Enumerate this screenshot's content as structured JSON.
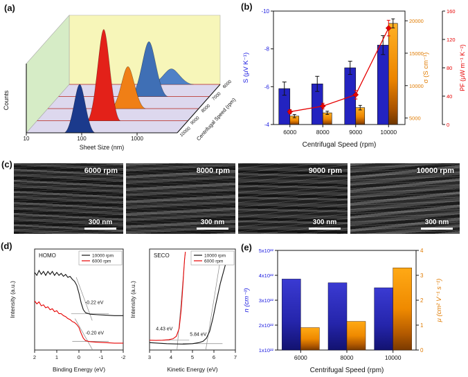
{
  "panels": {
    "a": {
      "label": "(a)"
    },
    "b": {
      "label": "(b)"
    },
    "c": {
      "label": "(c)",
      "images": [
        {
          "title": "6000 rpm",
          "scale": "300 nm"
        },
        {
          "title": "8000 rpm",
          "scale": "300 nm"
        },
        {
          "title": "9000 rpm",
          "scale": "300 nm"
        },
        {
          "title": "10000 rpm",
          "scale": "300 nm"
        }
      ]
    },
    "d": {
      "label": "(d)"
    },
    "e": {
      "label": "(e)"
    }
  },
  "chart_data": [
    {
      "id": "a",
      "type": "3d-distribution",
      "xlabel": "Sheet Size (nm)",
      "ylabel": "Counts",
      "zlabel": "Centrifugal Speed (rpm)",
      "x_ticks": [
        "10",
        "100",
        "1000"
      ],
      "x_log_range": [
        10,
        5000
      ],
      "series": [
        {
          "speed": "6000",
          "color": "#4f81c7",
          "peak_nm": 700,
          "height": 0.17,
          "width_dec": 0.2
        },
        {
          "speed": "7000",
          "color": "#3f6fb5",
          "peak_nm": 430,
          "height": 0.6,
          "width_dec": 0.17
        },
        {
          "speed": "8000",
          "color": "#f07f16",
          "peak_nm": 280,
          "height": 0.46,
          "width_dec": 0.16
        },
        {
          "speed": "9000",
          "color": "#e32119",
          "peak_nm": 160,
          "height": 1.0,
          "width_dec": 0.15
        },
        {
          "speed": "10000",
          "color": "#1b3a8c",
          "peak_nm": 92,
          "height": 0.53,
          "width_dec": 0.14
        }
      ]
    },
    {
      "id": "b",
      "type": "bar",
      "categories": [
        "6000",
        "8000",
        "9000",
        "10000"
      ],
      "xlabel": "Centrifugal Speed (rpm)",
      "series": [
        {
          "name": "S",
          "kind": "bar",
          "axis": "left",
          "label": "S (μV K⁻¹)",
          "color": "#2323c0",
          "values": [
            -5.9,
            -6.15,
            -7.0,
            -8.2
          ],
          "errors": [
            0.35,
            0.4,
            0.35,
            0.5
          ],
          "range": [
            -4,
            -10
          ],
          "ticks": [
            "-4",
            "-6",
            "-8",
            "-10"
          ],
          "tick_values": [
            -4,
            -6,
            -8,
            -10
          ]
        },
        {
          "name": "σ",
          "kind": "bar",
          "axis": "right1",
          "label": "σ (S cm⁻¹)",
          "color": "#e07b00",
          "values": [
            5300,
            5800,
            6600,
            19600
          ],
          "errors": [
            250,
            250,
            350,
            700
          ],
          "range": [
            4000,
            21500
          ],
          "ticks": [
            "5000",
            "10000",
            "15000",
            "20000"
          ],
          "tick_values": [
            5000,
            10000,
            15000,
            20000
          ]
        },
        {
          "name": "PF",
          "kind": "line",
          "axis": "right2",
          "label": "PF (μW m⁻¹ K⁻²)",
          "color": "#e60000",
          "values": [
            18,
            26,
            42,
            136
          ],
          "errors": [
            3,
            4,
            6,
            11
          ],
          "range": [
            0,
            160
          ],
          "ticks": [
            "0",
            "40",
            "80",
            "120",
            "160"
          ],
          "tick_values": [
            0,
            40,
            80,
            120,
            160
          ]
        }
      ]
    },
    {
      "id": "homo",
      "type": "line",
      "title": "HOMO",
      "xlabel": "Binding Energy (eV)",
      "ylabel": "Intensity (a.u.)",
      "x_range": [
        2,
        -2
      ],
      "x_ticks": [
        "2",
        "1",
        "0",
        "-1",
        "-2"
      ],
      "x_tick_values": [
        2,
        1,
        0,
        -1,
        -2
      ],
      "legend": [
        {
          "label": "10000 rpm",
          "color": "#111111"
        },
        {
          "label": "6000 rpm",
          "color": "#e60000"
        }
      ],
      "annotations": [
        {
          "text": "-0.22 eV",
          "x": -0.28,
          "y": 0.47,
          "hline": {
            "x1": 0.35,
            "x2": -1.35,
            "y": 0.37
          },
          "sline": {
            "x1": 0.12,
            "y1": 0.74,
            "x2": -0.6,
            "y2": 0.3
          }
        },
        {
          "text": "-0.20 eV",
          "x": -0.3,
          "y": 0.16,
          "hline": {
            "x1": 0.3,
            "x2": -1.35,
            "y": 0.088
          },
          "sline": {
            "x1": 0.18,
            "y1": 0.32,
            "x2": -0.62,
            "y2": 0.0
          }
        }
      ],
      "series": [
        {
          "name": "10000 rpm",
          "color": "#111111",
          "points": [
            [
              2,
              0.79
            ],
            [
              1.9,
              0.76
            ],
            [
              1.8,
              0.81
            ],
            [
              1.7,
              0.77
            ],
            [
              1.6,
              0.8
            ],
            [
              1.5,
              0.76
            ],
            [
              1.4,
              0.8
            ],
            [
              1.3,
              0.77
            ],
            [
              1.2,
              0.8
            ],
            [
              1.1,
              0.76
            ],
            [
              1.0,
              0.79
            ],
            [
              0.9,
              0.76
            ],
            [
              0.8,
              0.78
            ],
            [
              0.7,
              0.75
            ],
            [
              0.6,
              0.77
            ],
            [
              0.5,
              0.74
            ],
            [
              0.4,
              0.75
            ],
            [
              0.3,
              0.72
            ],
            [
              0.2,
              0.7
            ],
            [
              0.1,
              0.66
            ],
            [
              0.0,
              0.58
            ],
            [
              -0.1,
              0.48
            ],
            [
              -0.2,
              0.41
            ],
            [
              -0.3,
              0.38
            ],
            [
              -0.5,
              0.365
            ],
            [
              -0.8,
              0.36
            ],
            [
              -1.2,
              0.355
            ],
            [
              -1.6,
              0.35
            ],
            [
              -2,
              0.35
            ]
          ]
        },
        {
          "name": "6000 rpm",
          "color": "#e60000",
          "points": [
            [
              2,
              0.5
            ],
            [
              1.9,
              0.47
            ],
            [
              1.8,
              0.49
            ],
            [
              1.7,
              0.45
            ],
            [
              1.6,
              0.46
            ],
            [
              1.5,
              0.43
            ],
            [
              1.4,
              0.44
            ],
            [
              1.3,
              0.41
            ],
            [
              1.2,
              0.42
            ],
            [
              1.1,
              0.39
            ],
            [
              1.0,
              0.4
            ],
            [
              0.9,
              0.37
            ],
            [
              0.8,
              0.37
            ],
            [
              0.7,
              0.35
            ],
            [
              0.6,
              0.34
            ],
            [
              0.5,
              0.32
            ],
            [
              0.4,
              0.31
            ],
            [
              0.3,
              0.29
            ],
            [
              0.2,
              0.28
            ],
            [
              0.1,
              0.26
            ],
            [
              0.0,
              0.23
            ],
            [
              -0.1,
              0.17
            ],
            [
              -0.2,
              0.12
            ],
            [
              -0.3,
              0.095
            ],
            [
              -0.5,
              0.085
            ],
            [
              -0.8,
              0.08
            ],
            [
              -1.2,
              0.075
            ],
            [
              -1.6,
              0.07
            ],
            [
              -2,
              0.07
            ]
          ]
        }
      ]
    },
    {
      "id": "seco",
      "type": "line",
      "title": "SECO",
      "xlabel": "Kinetic Energy (eV)",
      "ylabel": "Intensity (a.u.)",
      "x_range": [
        3,
        7
      ],
      "x_ticks": [
        "3",
        "4",
        "5",
        "6",
        "7"
      ],
      "x_tick_values": [
        3,
        4,
        5,
        6,
        7
      ],
      "legend": [
        {
          "label": "10000 rpm",
          "color": "#111111"
        },
        {
          "label": "6000 rpm",
          "color": "#e60000"
        }
      ],
      "annotations": [
        {
          "text": "4.43 eV",
          "x": 3.3,
          "y": 0.2,
          "hline": {
            "x1": 3.1,
            "x2": 4.85,
            "y": 0.1
          },
          "sline": {
            "x1": 4.28,
            "y1": 0.0,
            "x2": 4.66,
            "y2": 0.98
          }
        },
        {
          "text": "5.84 eV",
          "x": 4.88,
          "y": 0.145,
          "hline": {
            "x1": 4.55,
            "x2": 6.4,
            "y": 0.065
          },
          "sline": {
            "x1": 5.62,
            "y1": 0.0,
            "x2": 6.3,
            "y2": 0.92
          }
        }
      ],
      "series": [
        {
          "name": "6000 rpm",
          "color": "#e60000",
          "points": [
            [
              3,
              0.1
            ],
            [
              3.3,
              0.098
            ],
            [
              3.6,
              0.1
            ],
            [
              3.9,
              0.105
            ],
            [
              4.1,
              0.115
            ],
            [
              4.25,
              0.14
            ],
            [
              4.38,
              0.22
            ],
            [
              4.48,
              0.42
            ],
            [
              4.56,
              0.68
            ],
            [
              4.63,
              0.92
            ],
            [
              4.67,
              1.0
            ]
          ]
        },
        {
          "name": "10000 rpm",
          "color": "#111111",
          "points": [
            [
              3,
              0.075
            ],
            [
              3.4,
              0.07
            ],
            [
              3.8,
              0.065
            ],
            [
              4.2,
              0.062
            ],
            [
              4.6,
              0.06
            ],
            [
              5.0,
              0.065
            ],
            [
              5.3,
              0.075
            ],
            [
              5.5,
              0.09
            ],
            [
              5.65,
              0.12
            ],
            [
              5.8,
              0.19
            ],
            [
              5.95,
              0.32
            ],
            [
              6.1,
              0.48
            ],
            [
              6.3,
              0.68
            ],
            [
              6.55,
              0.88
            ],
            [
              6.8,
              1.0
            ]
          ]
        }
      ]
    },
    {
      "id": "e",
      "type": "bar",
      "categories": [
        "6000",
        "8000",
        "10000"
      ],
      "xlabel": "Centrifugal Speed (rpm)",
      "left": {
        "label": "n (cm⁻³)",
        "color": "#2222bb",
        "ticks": [
          "1x10²²",
          "2x10²²",
          "3x10²²",
          "4x10²²",
          "5x10²²"
        ],
        "tick_values_1e22": [
          1,
          2,
          3,
          4,
          5
        ],
        "range_1e22": [
          1,
          5
        ],
        "values_1e22": [
          3.85,
          3.7,
          3.5
        ]
      },
      "right": {
        "label": "μ (cm² V⁻¹ s⁻¹)",
        "color": "#e07b00",
        "ticks": [
          "0",
          "1",
          "2",
          "3",
          "4"
        ],
        "tick_values": [
          0,
          1,
          2,
          3,
          4
        ],
        "range": [
          0,
          4
        ],
        "values": [
          0.9,
          1.15,
          3.3
        ]
      }
    }
  ]
}
